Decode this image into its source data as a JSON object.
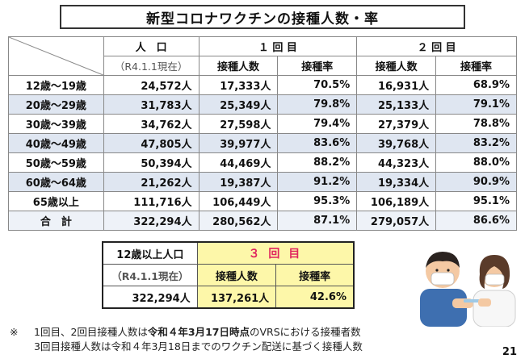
{
  "title": "新型コロナワクチンの接種人数・率",
  "main_table": {
    "population_header": "人　口",
    "population_sub": "（R4.1.1現在）",
    "dose1_header": "１ 回 目",
    "dose2_header": "２ 回 目",
    "count_header": "接種人数",
    "rate_header": "接種率",
    "rows": [
      {
        "label": "12歳～19歳",
        "pop": "24,572人",
        "d1n": "17,333人",
        "d1r": "70.5%",
        "d2n": "16,931人",
        "d2r": "68.9%"
      },
      {
        "label": "20歳～29歳",
        "pop": "31,783人",
        "d1n": "25,349人",
        "d1r": "79.8%",
        "d2n": "25,133人",
        "d2r": "79.1%"
      },
      {
        "label": "30歳～39歳",
        "pop": "34,762人",
        "d1n": "27,598人",
        "d1r": "79.4%",
        "d2n": "27,379人",
        "d2r": "78.8%"
      },
      {
        "label": "40歳～49歳",
        "pop": "47,805人",
        "d1n": "39,977人",
        "d1r": "83.6%",
        "d2n": "39,768人",
        "d2r": "83.2%"
      },
      {
        "label": "50歳～59歳",
        "pop": "50,394人",
        "d1n": "44,469人",
        "d1r": "88.2%",
        "d2n": "44,323人",
        "d2r": "88.0%"
      },
      {
        "label": "60歳～64歳",
        "pop": "21,262人",
        "d1n": "19,387人",
        "d1r": "91.2%",
        "d2n": "19,334人",
        "d2r": "90.9%"
      },
      {
        "label": "65歳以上",
        "pop": "111,716人",
        "d1n": "106,449人",
        "d1r": "95.3%",
        "d2n": "106,189人",
        "d2r": "95.1%"
      },
      {
        "label": "合　計",
        "pop": "322,294人",
        "d1n": "280,562人",
        "d1r": "87.1%",
        "d2n": "279,057人",
        "d2r": "86.6%"
      }
    ]
  },
  "third_table": {
    "pop_header": "12歳以上人口",
    "pop_sub": "（R4.1.1現在）",
    "dose3_header": "３ 回 目",
    "count_header": "接種人数",
    "rate_header": "接種率",
    "pop": "322,294人",
    "count": "137,261人",
    "rate": "42.6%"
  },
  "notes": {
    "mark": "※",
    "line1_a": "1回目、2回目接種人数は",
    "line1_b": "令和４年3月17日時点",
    "line1_c": "のVRSにおける接種者数",
    "line2": "3回目接種人数は令和４年3月18日までのワクチン配送に基づく接種人数"
  },
  "page_number": "21",
  "colors": {
    "band": "#dfe6f1",
    "highlight": "#fdf7a9",
    "accent": "#e0245e"
  }
}
